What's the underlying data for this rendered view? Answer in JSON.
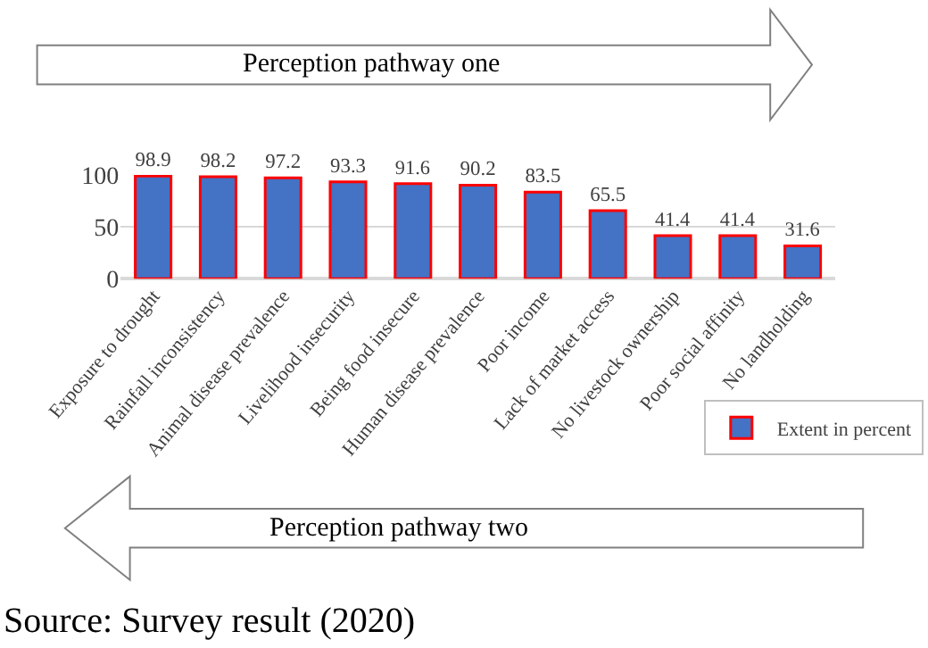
{
  "chart_data": {
    "type": "bar",
    "categories": [
      "Exposure to drought",
      "Rainfall inconsistency",
      "Animal disease prevalence",
      "Livelihood insecurity",
      "Being food insecure",
      "Human disease prevalence",
      "Poor income",
      "Lack of market access",
      "No livestock ownership",
      "Poor social affinity",
      "No landholding"
    ],
    "series": [
      {
        "name": "Extent in percent",
        "color": "#4472c4",
        "values": [
          98.9,
          98.2,
          97.2,
          93.3,
          91.6,
          90.2,
          83.5,
          65.5,
          41.4,
          41.4,
          31.6
        ]
      }
    ],
    "ylim": [
      0,
      100
    ],
    "yticks": [
      0,
      50,
      100
    ],
    "grid": "y",
    "data_labels": true,
    "legend": "bottom right",
    "annotations": [
      "Perception pathway one",
      "Perception pathway two",
      "Source: Survey result (2020)"
    ]
  }
}
